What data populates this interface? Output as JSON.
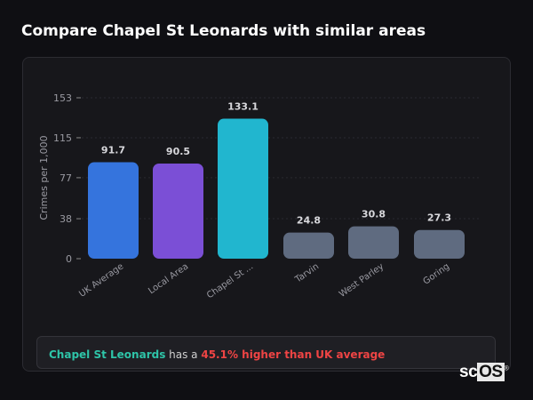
{
  "title": "Compare Chapel St Leonards with similar areas",
  "chart_data": {
    "type": "bar",
    "ylabel": "Crimes per 1,000",
    "xlabel": "",
    "ylim": [
      0,
      153
    ],
    "yticks": [
      0,
      38,
      77,
      115,
      153
    ],
    "grid": true,
    "categories": [
      "UK Average",
      "Local Area",
      "Chapel St ...",
      "Tarvin",
      "West Parley",
      "Goring"
    ],
    "values": [
      91.7,
      90.5,
      133.1,
      24.8,
      30.8,
      27.3
    ],
    "labels": [
      "91.7",
      "90.5",
      "133.1",
      "24.8",
      "30.8",
      "27.3"
    ],
    "colors": [
      "#3574dd",
      "#7b4fd6",
      "#21b6cf",
      "#5f6b80",
      "#5f6b80",
      "#5f6b80"
    ]
  },
  "info": {
    "area": "Chapel St Leonards",
    "middle": " has a ",
    "highlight": "45.1% higher than UK average"
  },
  "logo": {
    "text": "scOS"
  }
}
